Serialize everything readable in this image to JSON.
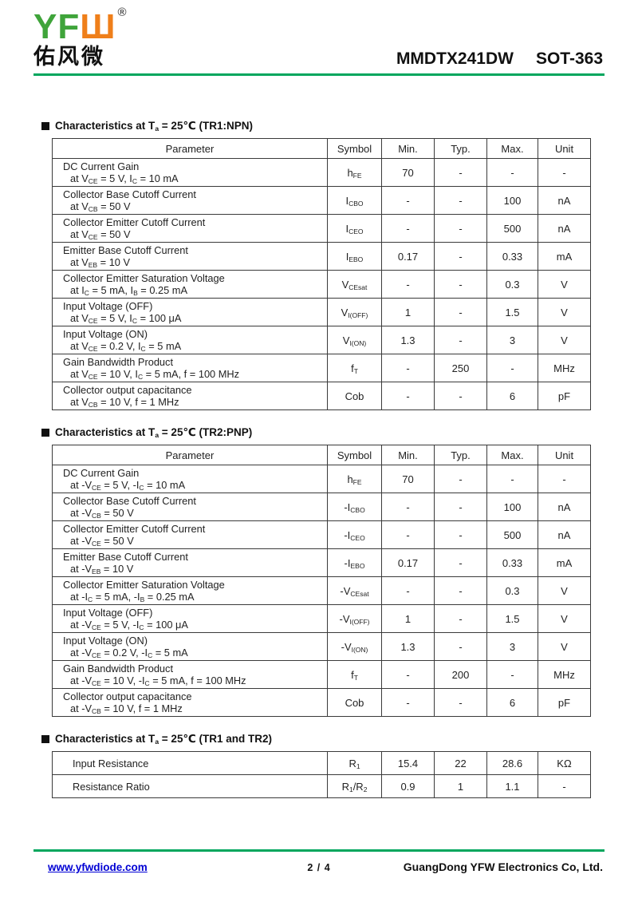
{
  "colors": {
    "green_line": "#00a65d",
    "logo_green": "#3fa43a",
    "logo_orange": "#ef7f1a",
    "link_blue": "#0000d4"
  },
  "header": {
    "logo": {
      "latin": "YF",
      "glyph": "Ш",
      "registered": "®",
      "chinese": "佑风微"
    },
    "title_model": "MMDTX241DW",
    "title_package": "SOT-363"
  },
  "sections": [
    {
      "heading": "Characteristics at T~a~ = 25℃ (TR1:NPN)",
      "columns": [
        "Parameter",
        "Symbol",
        "Min.",
        "Typ.",
        "Max.",
        "Unit"
      ],
      "rows": [
        {
          "p1": "DC Current Gain",
          "p2": "at V~CE~ = 5 V, I~C~ = 10 mA",
          "symbol": "h~FE~",
          "min": "70",
          "typ": "-",
          "max": "-",
          "unit": "-"
        },
        {
          "p1": "Collector Base Cutoff Current",
          "p2": "at V~CB~ = 50 V",
          "symbol": "I~CBO~",
          "min": "-",
          "typ": "-",
          "max": "100",
          "unit": "nA"
        },
        {
          "p1": "Collector Emitter Cutoff Current",
          "p2": "at V~CE~ = 50 V",
          "symbol": "I~CEO~",
          "min": "-",
          "typ": "-",
          "max": "500",
          "unit": "nA"
        },
        {
          "p1": "Emitter Base Cutoff Current",
          "p2": "at V~EB~ = 10 V",
          "symbol": "I~EBO~",
          "min": "0.17",
          "typ": "-",
          "max": "0.33",
          "unit": "mA"
        },
        {
          "p1": "Collector Emitter Saturation Voltage",
          "p2": "at I~C~ = 5 mA, I~B~ = 0.25 mA",
          "symbol": "V~CEsat~",
          "min": "-",
          "typ": "-",
          "max": "0.3",
          "unit": "V"
        },
        {
          "p1": "Input Voltage (OFF)",
          "p2": "at V~CE~ = 5 V, I~C~ = 100 μA",
          "symbol": "V~I(OFF)~",
          "min": "1",
          "typ": "-",
          "max": "1.5",
          "unit": "V"
        },
        {
          "p1": "Input Voltage (ON)",
          "p2": "at V~CE~ = 0.2 V, I~C~ = 5 mA",
          "symbol": "V~I(ON)~",
          "min": "1.3",
          "typ": "-",
          "max": "3",
          "unit": "V"
        },
        {
          "p1": "Gain Bandwidth Product",
          "p2": "at V~CE~ = 10 V, I~C~ = 5 mA, f = 100 MHz",
          "symbol": "f~T~",
          "min": "-",
          "typ": "250",
          "max": "-",
          "unit": "MHz"
        },
        {
          "p1": "Collector output capacitance",
          "p2": "at V~CB~ = 10 V, f = 1 MHz",
          "symbol": "Cob",
          "min": "-",
          "typ": "-",
          "max": "6",
          "unit": "pF"
        }
      ]
    },
    {
      "heading": "Characteristics at T~a~ = 25℃ (TR2:PNP)",
      "columns": [
        "Parameter",
        "Symbol",
        "Min.",
        "Typ.",
        "Max.",
        "Unit"
      ],
      "rows": [
        {
          "p1": "DC Current Gain",
          "p2": "at -V~CE~ = 5 V, -I~C~ = 10 mA",
          "symbol": "h~FE~",
          "min": "70",
          "typ": "-",
          "max": "-",
          "unit": "-"
        },
        {
          "p1": "Collector Base Cutoff Current",
          "p2": "at -V~CB~ = 50 V",
          "symbol": "-I~CBO~",
          "min": "-",
          "typ": "-",
          "max": "100",
          "unit": "nA"
        },
        {
          "p1": "Collector Emitter Cutoff Current",
          "p2": "at -V~CE~ = 50 V",
          "symbol": "-I~CEO~",
          "min": "-",
          "typ": "-",
          "max": "500",
          "unit": "nA"
        },
        {
          "p1": "Emitter Base Cutoff Current",
          "p2": "at -V~EB~ = 10 V",
          "symbol": "-I~EBO~",
          "min": "0.17",
          "typ": "-",
          "max": "0.33",
          "unit": "mA"
        },
        {
          "p1": "Collector Emitter Saturation Voltage",
          "p2": "at -I~C~ = 5 mA, -I~B~ = 0.25 mA",
          "symbol": "-V~CEsat~",
          "min": "-",
          "typ": "-",
          "max": "0.3",
          "unit": "V"
        },
        {
          "p1": "Input Voltage (OFF)",
          "p2": "at -V~CE~ = 5 V, -I~C~ = 100 μA",
          "symbol": "-V~I(OFF)~",
          "min": "1",
          "typ": "-",
          "max": "1.5",
          "unit": "V"
        },
        {
          "p1": "Input Voltage (ON)",
          "p2": "at -V~CE~ = 0.2 V, -I~C~ = 5 mA",
          "symbol": "-V~I(ON)~",
          "min": "1.3",
          "typ": "-",
          "max": "3",
          "unit": "V"
        },
        {
          "p1": "Gain Bandwidth Product",
          "p2": "at -V~CE~ = 10 V, -I~C~ = 5 mA, f = 100 MHz",
          "symbol": "f~T~",
          "min": "-",
          "typ": "200",
          "max": "-",
          "unit": "MHz"
        },
        {
          "p1": "Collector output capacitance",
          "p2": "at -V~CB~ = 10 V, f = 1 MHz",
          "symbol": "Cob",
          "min": "-",
          "typ": "-",
          "max": "6",
          "unit": "pF"
        }
      ]
    },
    {
      "heading": "Characteristics at T~a~ = 25℃ (TR1 and TR2)",
      "columns": [],
      "rows": [
        {
          "p1": "Input Resistance",
          "p2": "",
          "symbol": "R~1~",
          "min": "15.4",
          "typ": "22",
          "max": "28.6",
          "unit": "KΩ"
        },
        {
          "p1": "Resistance Ratio",
          "p2": "",
          "symbol": "R~1~/R~2~",
          "min": "0.9",
          "typ": "1",
          "max": "1.1",
          "unit": "-"
        }
      ]
    }
  ],
  "footer": {
    "website": "www.yfwdiode.com",
    "page": "2 / 4",
    "company": "GuangDong YFW Electronics Co, Ltd."
  }
}
